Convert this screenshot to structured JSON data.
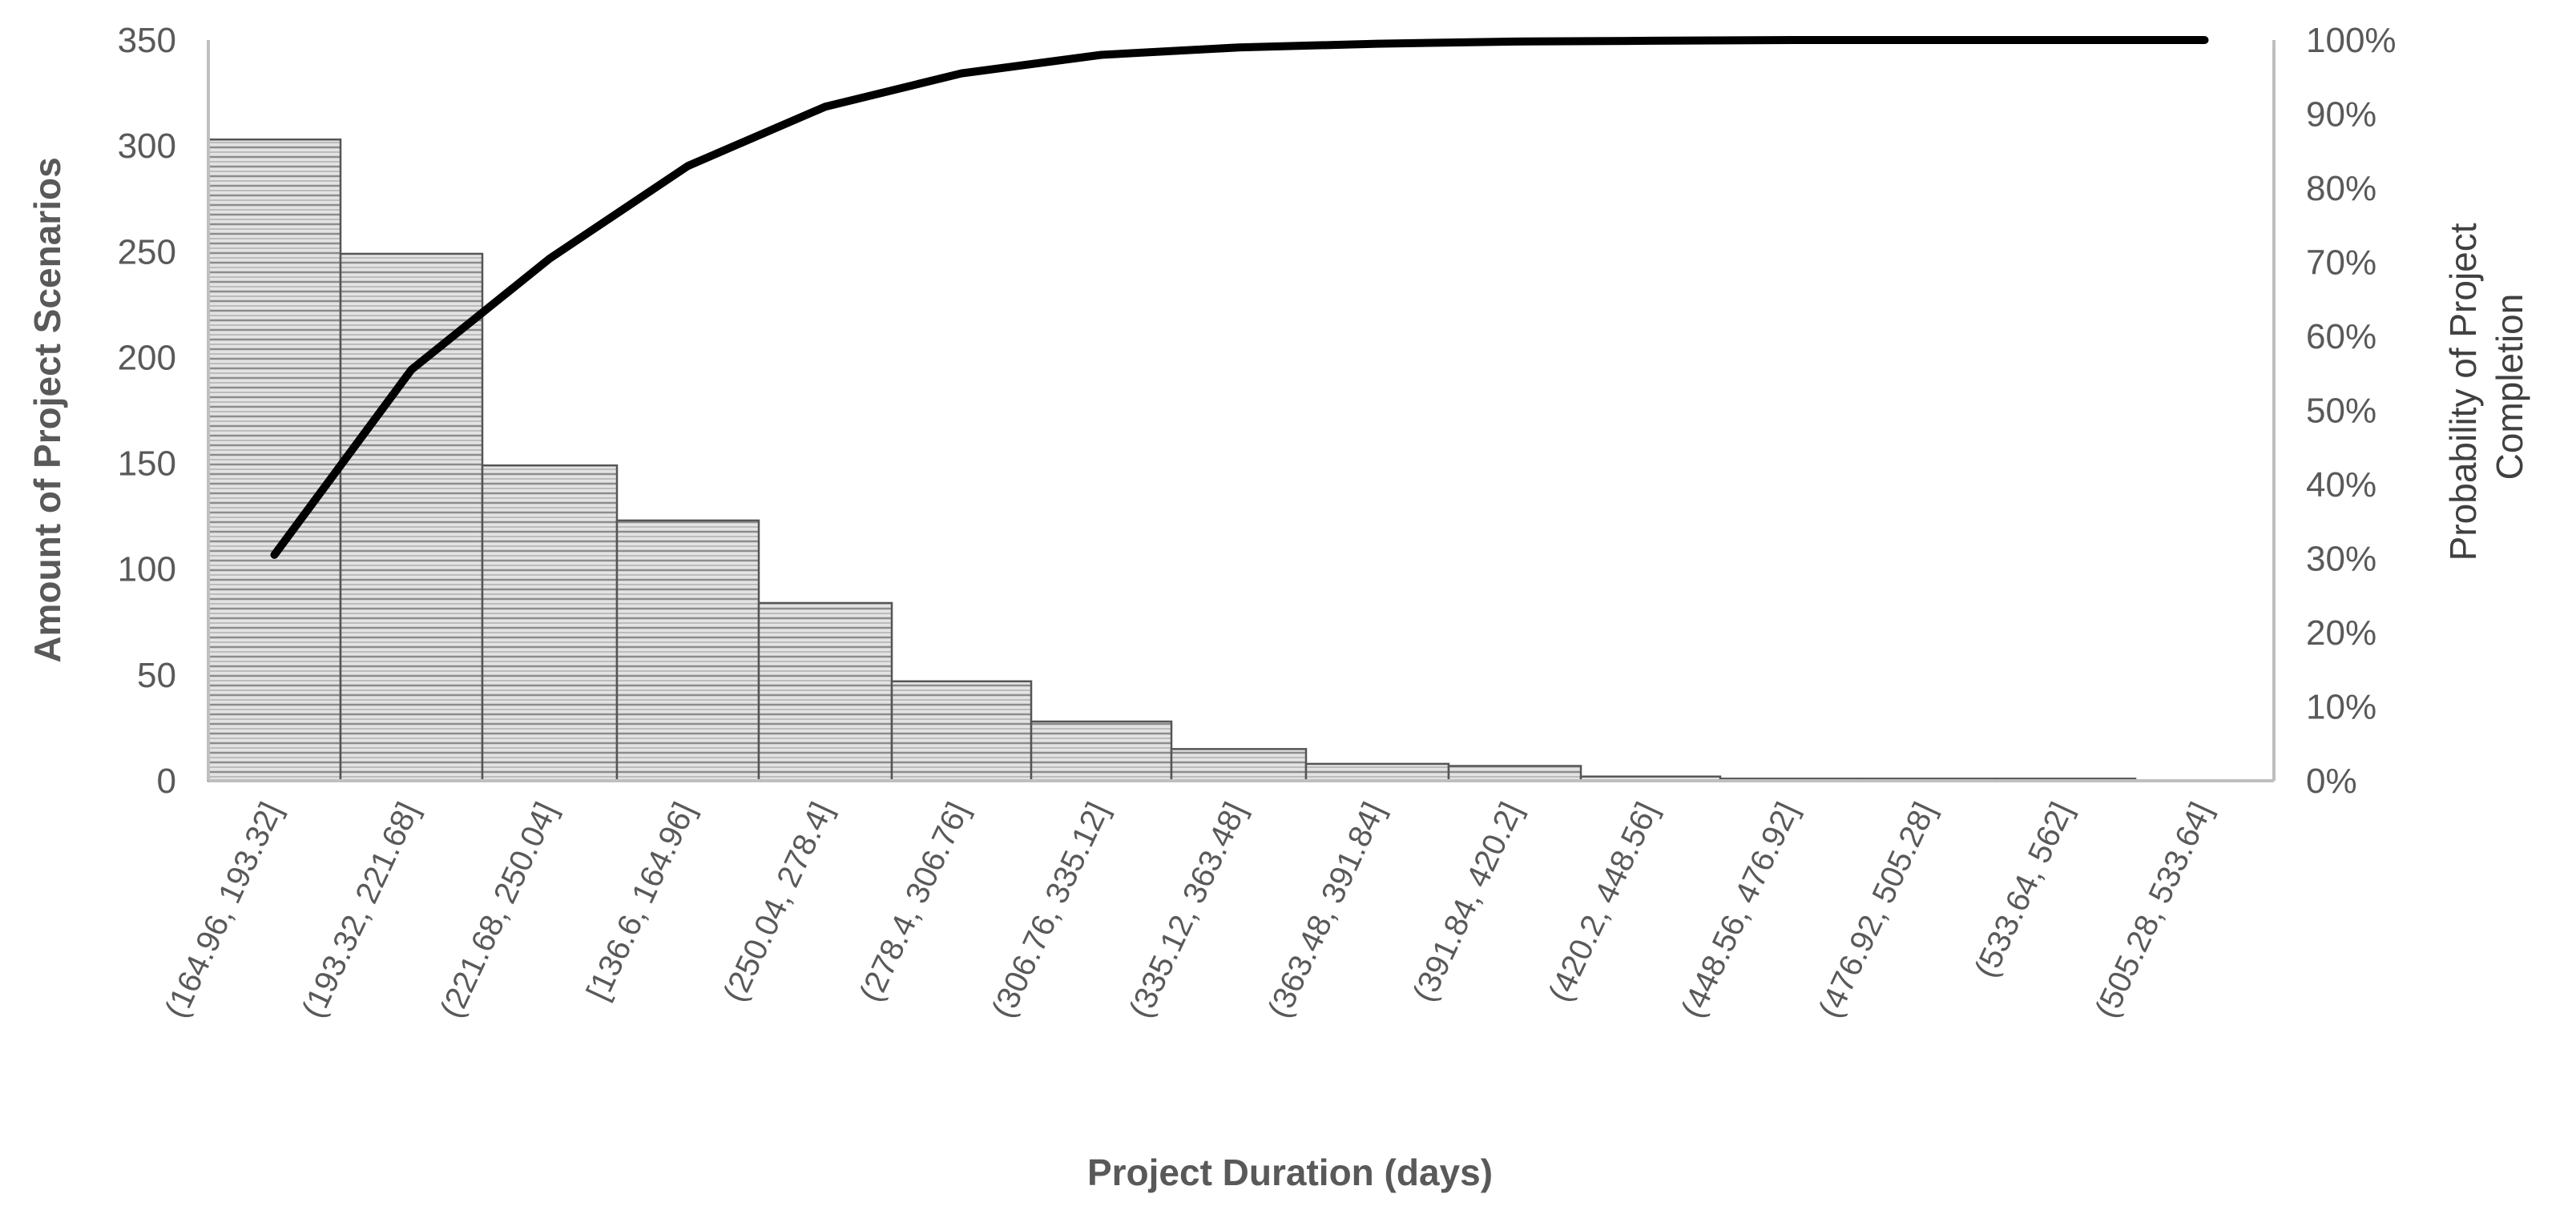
{
  "chart_data": {
    "type": "bar",
    "categories": [
      "(164.96, 193.32]",
      "(193.32, 221.68]",
      "(221.68, 250.04]",
      "[136.6, 164.96]",
      "(250.04, 278.4]",
      "(278.4, 306.76]",
      "(306.76, 335.12]",
      "(335.12, 363.48]",
      "(363.48, 391.84]",
      "(391.84, 420.2]",
      "(420.2, 448.56]",
      "(448.56, 476.92]",
      "(476.92, 505.28]",
      "(533.64, 562]",
      "(505.28, 533.64]"
    ],
    "series": [
      {
        "type": "bar",
        "axis": "left",
        "values": [
          303,
          249,
          149,
          123,
          84,
          47,
          28,
          15,
          8,
          7,
          2,
          1,
          1,
          1,
          0
        ]
      },
      {
        "type": "line",
        "axis": "right",
        "values": [
          0.305,
          0.555,
          0.705,
          0.83,
          0.91,
          0.955,
          0.98,
          0.99,
          0.995,
          0.998,
          0.999,
          1.0,
          1.0,
          1.0,
          1.0
        ]
      }
    ],
    "title": "",
    "xlabel": "Project Duration (days)",
    "ylabel": "Amount of Project Scenarios",
    "y2label": "Probability of Project Completion",
    "ylim": [
      0,
      350
    ],
    "y2lim": [
      0,
      1
    ],
    "yticks": [
      "0",
      "50",
      "100",
      "150",
      "200",
      "250",
      "300",
      "350"
    ],
    "y2ticks": [
      "0%",
      "10%",
      "20%",
      "30%",
      "40%",
      "50%",
      "60%",
      "70%",
      "80%",
      "90%",
      "100%"
    ],
    "grid": false,
    "legend": "none",
    "colors": {
      "bar_fill": "#d9d9d9",
      "bar_hatch": "#8c8c8c",
      "bar_edge": "#555555",
      "line": "#000000",
      "axis": "#bfbfbf",
      "text": "#595959"
    }
  }
}
